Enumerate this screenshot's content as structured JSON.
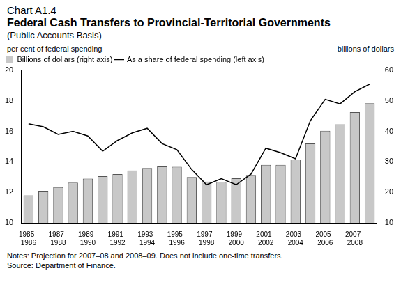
{
  "chart_data": {
    "type": "bar",
    "chart_label": "Chart A1.4",
    "title": "Federal Cash Transfers to Provincial-Territorial Governments",
    "subtitle": "(Public Accounts Basis)",
    "ylabel": "per cent of federal spending",
    "y2label": "billions of dollars",
    "notes": "Notes: Projection for 2007–08 and 2008–09. Does not include one-time transfers.",
    "source": "Source: Department of Finance.",
    "categories": [
      "1985–1986",
      null,
      "1987–1988",
      null,
      "1989–1990",
      null,
      "1991–1992",
      null,
      "1993–1994",
      null,
      "1995–1996",
      null,
      "1997–1998",
      null,
      "1999–2000",
      null,
      "2001–2002",
      null,
      "2003–2004",
      null,
      "2005–2006",
      null,
      "2007–2008",
      null
    ],
    "series": [
      {
        "name": "Billions of dollars (right axis)",
        "type": "bar",
        "axis": "y2",
        "color": "#c8c8c8",
        "values": [
          19,
          20.5,
          21.7,
          23.2,
          24.5,
          25.3,
          26,
          27.2,
          28,
          28.5,
          28.4,
          25,
          23.5,
          23.4,
          24.6,
          25.7,
          29,
          29,
          30.8,
          36,
          40.2,
          42.3,
          46.3,
          49.2
        ]
      },
      {
        "name": "As a share of federal spending (left axis)",
        "type": "line",
        "color": "#000000",
        "marker": "none",
        "line_style": "solid",
        "values": [
          16.5,
          16.3,
          15.8,
          16.0,
          15.7,
          14.7,
          15.4,
          15.9,
          16.2,
          15.2,
          14.8,
          13.5,
          12.5,
          12.9,
          12.5,
          13.2,
          14.9,
          14.6,
          14.2,
          16.7,
          18.1,
          17.8,
          18.6,
          19.1
        ]
      }
    ],
    "ylim": [
      10,
      20
    ],
    "yticks": [
      10,
      12,
      14,
      16,
      18,
      20
    ],
    "y2lim": [
      10,
      60
    ],
    "y2ticks": [
      10,
      20,
      30,
      40,
      50,
      60
    ],
    "grid": false,
    "legend": "upper left"
  }
}
